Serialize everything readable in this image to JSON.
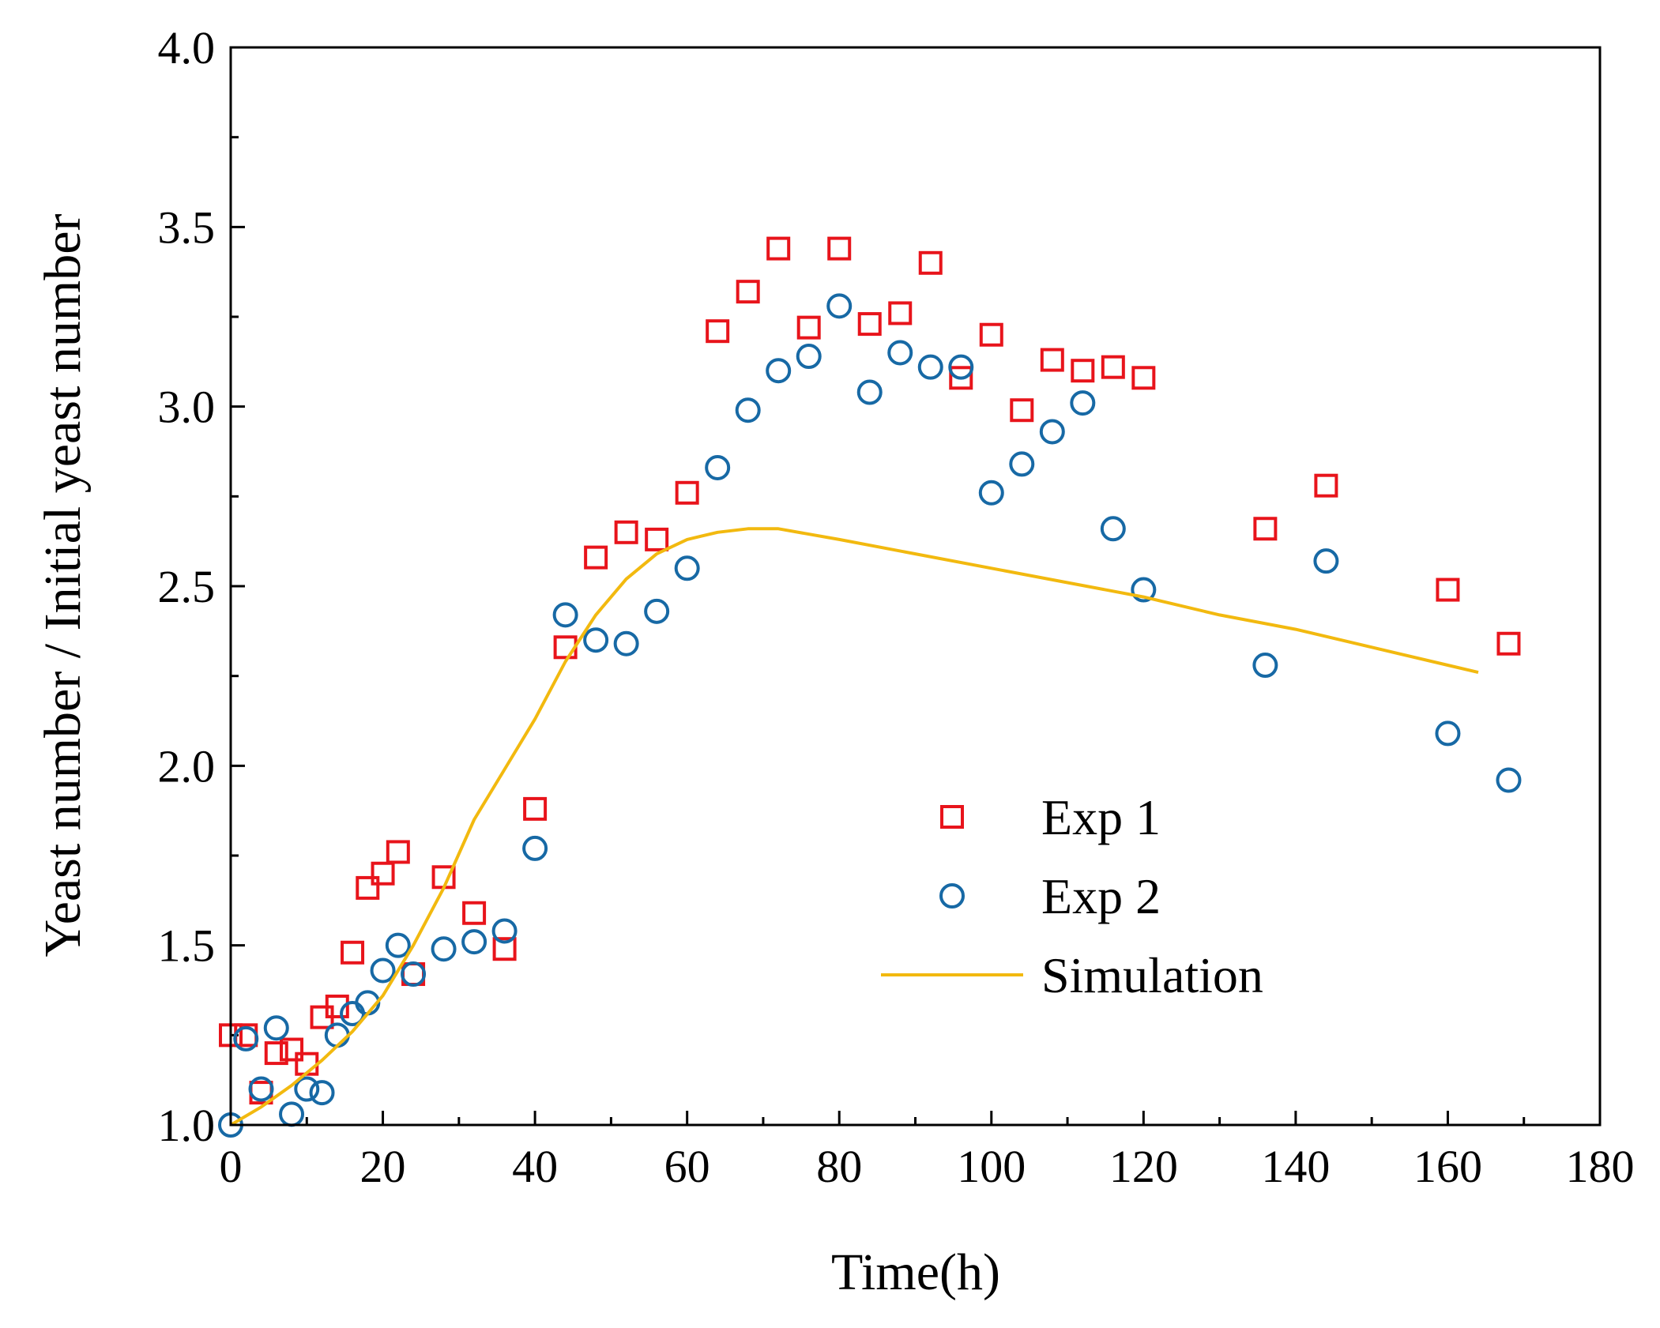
{
  "chart_data": {
    "type": "scatter",
    "title": "",
    "xlabel": "Time(h)",
    "ylabel": "Yeast number / Initial yeast number",
    "xlim": [
      0,
      180
    ],
    "ylim": [
      1.0,
      4.0
    ],
    "x_ticks": [
      "0",
      "20",
      "40",
      "60",
      "80",
      "100",
      "120",
      "140",
      "160",
      "180"
    ],
    "y_ticks": [
      "1.0",
      "1.5",
      "2.0",
      "2.5",
      "3.0",
      "3.5",
      "4.0"
    ],
    "grid": false,
    "legend_position": "center-right",
    "series": [
      {
        "name": "Exp 1",
        "marker": "square",
        "color": "#e8141b",
        "x": [
          0,
          2,
          4,
          6,
          8,
          10,
          12,
          14,
          16,
          18,
          20,
          22,
          24,
          28,
          32,
          36,
          40,
          44,
          48,
          52,
          56,
          60,
          64,
          68,
          72,
          76,
          80,
          84,
          88,
          92,
          96,
          100,
          104,
          108,
          112,
          116,
          120,
          136,
          144,
          160,
          168
        ],
        "y": [
          1.25,
          1.25,
          1.09,
          1.2,
          1.21,
          1.17,
          1.3,
          1.33,
          1.48,
          1.66,
          1.7,
          1.76,
          1.42,
          1.69,
          1.59,
          1.49,
          1.88,
          2.33,
          2.58,
          2.65,
          2.63,
          2.76,
          3.21,
          3.32,
          3.44,
          3.22,
          3.44,
          3.23,
          3.26,
          3.4,
          3.08,
          3.2,
          2.99,
          3.13,
          3.1,
          3.11,
          3.08,
          2.66,
          2.78,
          2.49,
          2.34
        ]
      },
      {
        "name": "Exp 2",
        "marker": "circle",
        "color": "#1769a5",
        "x": [
          0,
          2,
          4,
          6,
          8,
          10,
          12,
          14,
          16,
          18,
          20,
          22,
          24,
          28,
          32,
          36,
          40,
          44,
          48,
          52,
          56,
          60,
          64,
          68,
          72,
          76,
          80,
          84,
          88,
          92,
          96,
          100,
          104,
          108,
          112,
          116,
          120,
          136,
          144,
          160,
          168
        ],
        "y": [
          1.0,
          1.24,
          1.1,
          1.27,
          1.03,
          1.1,
          1.09,
          1.25,
          1.31,
          1.34,
          1.43,
          1.5,
          1.42,
          1.49,
          1.51,
          1.54,
          1.77,
          2.42,
          2.35,
          2.34,
          2.43,
          2.55,
          2.83,
          2.99,
          3.1,
          3.14,
          3.28,
          3.04,
          3.15,
          3.11,
          3.11,
          2.76,
          2.84,
          2.93,
          3.01,
          2.66,
          2.49,
          2.28,
          2.57,
          2.09,
          1.96
        ]
      },
      {
        "name": "Simulation",
        "marker": "line",
        "color": "#f2b90f",
        "x": [
          0,
          4,
          8,
          12,
          16,
          20,
          24,
          28,
          32,
          36,
          40,
          44,
          48,
          52,
          56,
          60,
          64,
          68,
          72,
          80,
          90,
          100,
          110,
          120,
          130,
          140,
          150,
          160,
          164
        ],
        "y": [
          1.0,
          1.05,
          1.11,
          1.18,
          1.26,
          1.36,
          1.5,
          1.66,
          1.85,
          1.99,
          2.13,
          2.29,
          2.42,
          2.52,
          2.59,
          2.63,
          2.65,
          2.66,
          2.66,
          2.63,
          2.59,
          2.55,
          2.51,
          2.47,
          2.42,
          2.38,
          2.33,
          2.28,
          2.26
        ]
      }
    ]
  }
}
